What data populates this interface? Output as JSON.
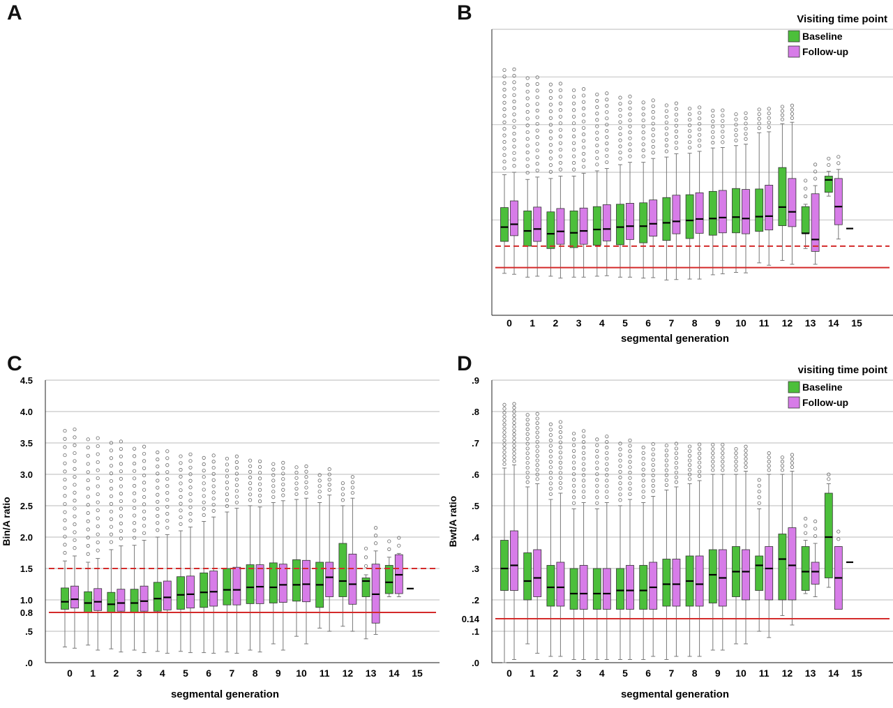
{
  "panels": {
    "a": {
      "letter": "A"
    },
    "b": {
      "letter": "B"
    },
    "c": {
      "letter": "C"
    },
    "d": {
      "letter": "D"
    }
  },
  "colors": {
    "baseline": "#4cbf3b",
    "followup": "#d77ce8",
    "reference": "#d42a2a",
    "grid": "#c8c8c8"
  },
  "chart_data": [
    {
      "panel": "B",
      "type": "box",
      "title": "",
      "xlabel": "segmental generation",
      "ylabel": "",
      "ylim": [
        0,
        6.0
      ],
      "ytick_values": [
        0,
        1,
        2,
        3,
        4,
        5,
        6
      ],
      "ytick_labels": [],
      "categories": [
        "0",
        "1",
        "2",
        "3",
        "4",
        "5",
        "6",
        "7",
        "8",
        "9",
        "10",
        "11",
        "12",
        "13",
        "14",
        "15"
      ],
      "legend": {
        "title": "Visiting time point",
        "entries": [
          "Baseline",
          "Follow-up"
        ],
        "position": "top-right"
      },
      "reference_lines": [
        {
          "style": "dashed",
          "value": 1.45
        },
        {
          "style": "solid",
          "value": 1.0
        }
      ],
      "series": [
        {
          "name": "Baseline",
          "q1": [
            1.55,
            1.45,
            1.4,
            1.42,
            1.47,
            1.48,
            1.52,
            1.57,
            1.61,
            1.68,
            1.73,
            1.76,
            1.88,
            1.72,
            2.58
          ],
          "median": [
            1.85,
            1.77,
            1.71,
            1.73,
            1.8,
            1.85,
            1.87,
            1.94,
            1.99,
            2.03,
            2.06,
            2.07,
            2.27,
            1.72,
            2.84
          ],
          "q3": [
            2.26,
            2.19,
            2.17,
            2.19,
            2.28,
            2.33,
            2.36,
            2.47,
            2.53,
            2.6,
            2.66,
            2.65,
            3.1,
            2.28,
            2.92
          ],
          "wmin": [
            0.88,
            0.8,
            0.82,
            0.8,
            0.82,
            0.8,
            0.78,
            0.74,
            0.76,
            0.85,
            0.9,
            1.1,
            1.15,
            1.4,
            2.5
          ],
          "wmax": [
            2.95,
            2.85,
            2.87,
            2.92,
            3.03,
            3.16,
            3.21,
            3.32,
            3.4,
            3.51,
            3.56,
            3.83,
            4.02,
            2.33,
            3.02
          ]
        },
        {
          "name": "Follow-up",
          "q1": [
            1.67,
            1.55,
            1.49,
            1.49,
            1.56,
            1.59,
            1.66,
            1.71,
            1.72,
            1.73,
            1.71,
            1.79,
            1.86,
            1.34,
            1.9
          ],
          "median": [
            1.91,
            1.81,
            1.76,
            1.77,
            1.81,
            1.87,
            1.92,
            1.97,
            2.02,
            2.05,
            2.03,
            2.08,
            2.17,
            1.59,
            2.28
          ],
          "q3": [
            2.4,
            2.27,
            2.24,
            2.25,
            2.32,
            2.35,
            2.42,
            2.52,
            2.57,
            2.62,
            2.64,
            2.73,
            2.87,
            2.55,
            2.87
          ],
          "wmin": [
            0.86,
            0.82,
            0.78,
            0.8,
            0.83,
            0.8,
            0.79,
            0.75,
            0.76,
            0.87,
            0.89,
            1.05,
            1.07,
            1.07,
            1.6
          ],
          "wmax": [
            3.0,
            2.9,
            2.92,
            2.98,
            3.08,
            3.21,
            3.29,
            3.39,
            3.44,
            3.52,
            3.59,
            3.85,
            4.05,
            2.72,
            3.06
          ]
        }
      ],
      "single_median_at_15": 1.82
    },
    {
      "panel": "C",
      "type": "box",
      "title": "",
      "xlabel": "segmental generation",
      "ylabel": "Bin/A ratio",
      "ylim": [
        0,
        4.5
      ],
      "ytick_values": [
        0,
        0.5,
        0.8,
        1.0,
        1.5,
        2.0,
        2.5,
        3.0,
        3.5,
        4.0,
        4.5
      ],
      "ytick_labels": [
        ".0",
        ".5",
        "0.8",
        "1.0",
        "1.5",
        "2.0",
        "2.5",
        "3.0",
        "3.5",
        "4.0",
        "4.5"
      ],
      "categories": [
        "0",
        "1",
        "2",
        "3",
        "4",
        "5",
        "6",
        "7",
        "8",
        "9",
        "10",
        "11",
        "12",
        "13",
        "14",
        "15"
      ],
      "legend": null,
      "reference_lines": [
        {
          "style": "dashed",
          "value": 1.5
        },
        {
          "style": "solid",
          "value": 0.8
        }
      ],
      "series": [
        {
          "name": "Baseline",
          "q1": [
            0.85,
            0.8,
            0.8,
            0.8,
            0.82,
            0.85,
            0.88,
            0.92,
            0.94,
            0.95,
            0.98,
            0.88,
            1.05,
            1.05,
            1.1
          ],
          "median": [
            0.97,
            0.95,
            0.93,
            0.95,
            1.02,
            1.08,
            1.12,
            1.16,
            1.2,
            1.2,
            1.24,
            1.24,
            1.3,
            1.3,
            1.28
          ],
          "q3": [
            1.19,
            1.13,
            1.12,
            1.17,
            1.28,
            1.37,
            1.43,
            1.5,
            1.56,
            1.59,
            1.64,
            1.6,
            1.9,
            1.35,
            1.55
          ],
          "wmin": [
            0.25,
            0.28,
            0.22,
            0.2,
            0.18,
            0.18,
            0.16,
            0.17,
            0.2,
            0.3,
            0.42,
            0.55,
            0.58,
            0.38,
            1.05
          ],
          "wmax": [
            1.62,
            1.6,
            1.8,
            1.87,
            2.0,
            2.1,
            2.25,
            2.4,
            2.5,
            2.55,
            2.6,
            2.55,
            2.5,
            1.4,
            1.68
          ]
        },
        {
          "name": "Follow-up",
          "q1": [
            0.87,
            0.83,
            0.82,
            0.82,
            0.84,
            0.87,
            0.9,
            0.92,
            0.94,
            0.96,
            0.97,
            1.05,
            0.93,
            0.63,
            1.1
          ],
          "median": [
            1.01,
            0.97,
            0.95,
            0.98,
            1.04,
            1.09,
            1.13,
            1.16,
            1.21,
            1.24,
            1.25,
            1.36,
            1.25,
            1.09,
            1.4
          ],
          "q3": [
            1.22,
            1.18,
            1.17,
            1.22,
            1.3,
            1.38,
            1.46,
            1.52,
            1.56,
            1.57,
            1.63,
            1.6,
            1.73,
            1.57,
            1.72
          ],
          "wmin": [
            0.23,
            0.2,
            0.17,
            0.16,
            0.15,
            0.16,
            0.15,
            0.15,
            0.17,
            0.2,
            0.3,
            0.5,
            0.5,
            0.45,
            1.05
          ],
          "wmax": [
            1.7,
            1.66,
            1.86,
            1.95,
            2.04,
            2.16,
            2.32,
            2.46,
            2.48,
            2.58,
            2.62,
            2.67,
            2.62,
            1.78,
            1.74
          ]
        }
      ],
      "single_median_at_15": 1.18
    },
    {
      "panel": "D",
      "type": "box",
      "title": "",
      "xlabel": "segmental generation",
      "ylabel": "Bwt/A ratio",
      "ylim": [
        0,
        0.9
      ],
      "ytick_values": [
        0,
        0.1,
        0.14,
        0.2,
        0.3,
        0.4,
        0.5,
        0.6,
        0.7,
        0.8,
        0.9
      ],
      "ytick_labels": [
        ".0",
        ".1",
        "0.14",
        ".2",
        ".3",
        ".4",
        ".5",
        ".6",
        ".7",
        ".8",
        ".9"
      ],
      "categories": [
        "0",
        "1",
        "2",
        "3",
        "4",
        "5",
        "6",
        "7",
        "8",
        "9",
        "10",
        "11",
        "12",
        "13",
        "14",
        "15"
      ],
      "legend": {
        "title": "visiting time point",
        "entries": [
          "Baseline",
          "Follow-up"
        ],
        "position": "top-right"
      },
      "reference_lines": [
        {
          "style": "solid",
          "value": 0.14
        }
      ],
      "series": [
        {
          "name": "Baseline",
          "q1": [
            0.23,
            0.2,
            0.18,
            0.17,
            0.17,
            0.17,
            0.17,
            0.18,
            0.18,
            0.19,
            0.21,
            0.23,
            0.2,
            0.23,
            0.27
          ],
          "median": [
            0.3,
            0.26,
            0.24,
            0.22,
            0.22,
            0.23,
            0.23,
            0.25,
            0.26,
            0.28,
            0.29,
            0.31,
            0.33,
            0.29,
            0.4
          ],
          "q3": [
            0.39,
            0.35,
            0.31,
            0.3,
            0.3,
            0.3,
            0.31,
            0.33,
            0.34,
            0.36,
            0.37,
            0.34,
            0.41,
            0.37,
            0.54
          ],
          "wmin": [
            0.0,
            0.06,
            0.02,
            0.01,
            0.01,
            0.01,
            0.01,
            0.01,
            0.02,
            0.04,
            0.06,
            0.1,
            0.15,
            0.22,
            0.24
          ],
          "wmax": [
            0.62,
            0.56,
            0.52,
            0.49,
            0.49,
            0.5,
            0.51,
            0.55,
            0.57,
            0.6,
            0.6,
            0.49,
            0.6,
            0.39,
            0.57
          ]
        },
        {
          "name": "Follow-up",
          "q1": [
            0.23,
            0.21,
            0.18,
            0.17,
            0.17,
            0.17,
            0.17,
            0.18,
            0.18,
            0.18,
            0.2,
            0.2,
            0.2,
            0.25,
            0.17
          ],
          "median": [
            0.31,
            0.27,
            0.24,
            0.22,
            0.22,
            0.23,
            0.24,
            0.25,
            0.25,
            0.27,
            0.29,
            0.3,
            0.31,
            0.29,
            0.27
          ],
          "q3": [
            0.42,
            0.36,
            0.32,
            0.31,
            0.3,
            0.31,
            0.32,
            0.33,
            0.34,
            0.36,
            0.36,
            0.37,
            0.43,
            0.32,
            0.37
          ],
          "wmin": [
            0.01,
            0.03,
            0.02,
            0.01,
            0.01,
            0.01,
            0.02,
            0.02,
            0.02,
            0.04,
            0.06,
            0.08,
            0.12,
            0.21,
            0.2
          ],
          "wmax": [
            0.63,
            0.57,
            0.54,
            0.51,
            0.51,
            0.52,
            0.53,
            0.56,
            0.58,
            0.6,
            0.61,
            0.6,
            0.61,
            0.38,
            0.37
          ]
        }
      ],
      "single_median_at_15": 0.32
    }
  ]
}
